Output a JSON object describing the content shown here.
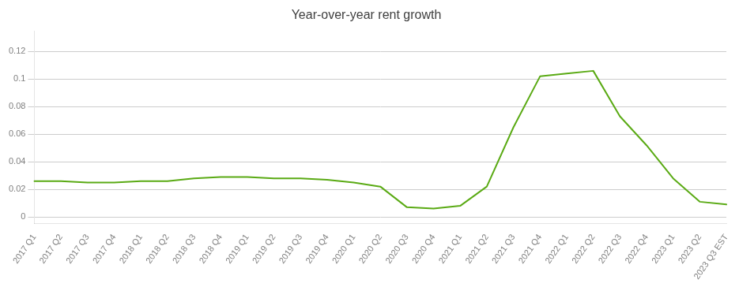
{
  "chart_data": {
    "type": "line",
    "title": "Year-over-year rent growth",
    "categories": [
      "2017 Q1",
      "2017 Q2",
      "2017 Q3",
      "2017 Q4",
      "2018 Q1",
      "2018 Q2",
      "2018 Q3",
      "2018 Q4",
      "2019 Q1",
      "2019 Q2",
      "2019 Q3",
      "2019 Q4",
      "2020 Q1",
      "2020 Q2",
      "2020 Q3",
      "2020 Q4",
      "2021 Q1",
      "2021 Q2",
      "2021 Q3",
      "2021 Q4",
      "2022 Q1",
      "2022 Q2",
      "2022 Q3",
      "2022 Q4",
      "2023 Q1",
      "2023 Q2",
      "2023 Q3 EST"
    ],
    "values": [
      0.026,
      0.026,
      0.025,
      0.025,
      0.026,
      0.026,
      0.028,
      0.029,
      0.029,
      0.028,
      0.028,
      0.027,
      0.025,
      0.022,
      0.007,
      0.006,
      0.008,
      0.022,
      0.065,
      0.102,
      0.104,
      0.106,
      0.073,
      0.052,
      0.028,
      0.011,
      0.009
    ],
    "color": "#5aaa14",
    "ylim": [
      -0.005,
      0.135
    ],
    "yticks": [
      0,
      0.02,
      0.04,
      0.06,
      0.08,
      0.1,
      0.12
    ],
    "grid": true
  }
}
